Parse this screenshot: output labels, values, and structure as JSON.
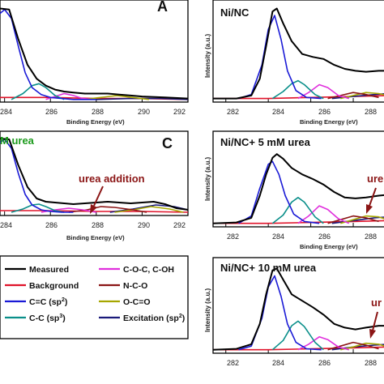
{
  "colors": {
    "measured": "#000000",
    "background": "#e0132a",
    "cc_sp2": "#1a1ad6",
    "cc_sp3": "#0a8f8a",
    "coc": "#e02fdc",
    "nco": "#8b1515",
    "oco": "#a6a600",
    "excitation": "#1a1a7a",
    "green_title": "#1b9a1b",
    "urea_ann": "#8b1515"
  },
  "legend": {
    "items": [
      {
        "key": "measured",
        "label": "Measured",
        "sup": ""
      },
      {
        "key": "coc",
        "label": "C-O-C, C-OH",
        "sup": ""
      },
      {
        "key": "background",
        "label": "Background",
        "sup": ""
      },
      {
        "key": "nco",
        "label": "N-C-O",
        "sup": ""
      },
      {
        "key": "cc_sp2",
        "label": "C=C (sp",
        "sup": "2",
        "close": ")"
      },
      {
        "key": "oco",
        "label": "O-C=O",
        "sup": ""
      },
      {
        "key": "cc_sp3",
        "label": "C-C (sp",
        "sup": "3",
        "close": ")"
      },
      {
        "key": "excitation",
        "label": "Excitation (sp",
        "sup": "2",
        "close": ")"
      }
    ]
  },
  "chart_data": [
    {
      "id": "A",
      "type": "line",
      "letter": "A",
      "title": "",
      "title_color": "",
      "xlabel": "Binding Energy (eV)",
      "ylabel": "",
      "xlim": [
        283.8,
        292
      ],
      "xticks": [
        "284",
        "286",
        "288",
        "290",
        "292"
      ],
      "annotation": "",
      "series": [
        {
          "key": "measured",
          "x": [
            283.8,
            284.2,
            284.6,
            285.0,
            285.4,
            285.8,
            286.2,
            286.6,
            287.0,
            287.5,
            288.0,
            288.5,
            289.0,
            289.5,
            290.0,
            291.0,
            292.0
          ],
          "y": [
            0.93,
            0.92,
            0.62,
            0.36,
            0.22,
            0.15,
            0.11,
            0.09,
            0.08,
            0.07,
            0.07,
            0.07,
            0.06,
            0.05,
            0.04,
            0.03,
            0.02
          ]
        },
        {
          "key": "background",
          "x": [
            283.8,
            286,
            288,
            290,
            292
          ],
          "y": [
            0.03,
            0.03,
            0.02,
            0.02,
            0.01
          ]
        },
        {
          "key": "cc_sp2",
          "x": [
            283.8,
            284.0,
            284.3,
            284.6,
            284.9,
            285.2,
            285.6,
            286.0,
            286.5,
            287.0,
            288.0
          ],
          "y": [
            0.88,
            0.92,
            0.83,
            0.55,
            0.28,
            0.13,
            0.06,
            0.03,
            0.02,
            0.01,
            0.01
          ]
        },
        {
          "key": "cc_sp3",
          "x": [
            284.3,
            284.8,
            285.2,
            285.5,
            285.8,
            286.2,
            286.6
          ],
          "y": [
            0.01,
            0.07,
            0.15,
            0.17,
            0.13,
            0.05,
            0.01
          ]
        },
        {
          "key": "coc",
          "x": [
            285.8,
            286.2,
            286.6,
            287.0,
            287.4,
            287.8
          ],
          "y": [
            0.01,
            0.04,
            0.07,
            0.05,
            0.02,
            0.01
          ]
        },
        {
          "key": "oco",
          "x": [
            287.4,
            288.2,
            288.9,
            289.6,
            290.3
          ],
          "y": [
            0.01,
            0.03,
            0.05,
            0.03,
            0.01
          ]
        },
        {
          "key": "excitation",
          "x": [
            288.0,
            289.5,
            290.8,
            292.0
          ],
          "y": [
            0.01,
            0.02,
            0.02,
            0.01
          ]
        }
      ]
    },
    {
      "id": "B",
      "type": "line",
      "letter": "",
      "title": "Ni/NC",
      "title_color": "#111111",
      "xlabel": "Binding Energy (eV)",
      "ylabel": "Intensity (a.u.)",
      "xlim": [
        281.4,
        289.6
      ],
      "xticks": [
        "282",
        "284",
        "286",
        "288"
      ],
      "annotation": "",
      "series": [
        {
          "key": "measured",
          "x": [
            281.4,
            282.5,
            283.2,
            283.6,
            283.9,
            284.2,
            284.4,
            284.7,
            285.1,
            285.6,
            286.1,
            286.6,
            287.1,
            287.6,
            288.1,
            288.6,
            289.2,
            289.6
          ],
          "y": [
            0.02,
            0.02,
            0.05,
            0.22,
            0.55,
            0.9,
            0.93,
            0.78,
            0.6,
            0.47,
            0.44,
            0.42,
            0.36,
            0.32,
            0.3,
            0.29,
            0.3,
            0.3
          ]
        },
        {
          "key": "background",
          "x": [
            281.4,
            284,
            286,
            288,
            289.6
          ],
          "y": [
            0.02,
            0.02,
            0.03,
            0.04,
            0.05
          ]
        },
        {
          "key": "cc_sp2",
          "x": [
            282.6,
            283.2,
            283.7,
            284.0,
            284.3,
            284.6,
            284.9,
            285.3,
            285.8,
            286.5
          ],
          "y": [
            0.02,
            0.06,
            0.36,
            0.72,
            0.86,
            0.62,
            0.3,
            0.1,
            0.03,
            0.02
          ]
        },
        {
          "key": "cc_sp3",
          "x": [
            284.2,
            284.7,
            285.1,
            285.4,
            285.7,
            286.2,
            286.6
          ],
          "y": [
            0.02,
            0.09,
            0.17,
            0.2,
            0.16,
            0.06,
            0.02
          ]
        },
        {
          "key": "coc",
          "x": [
            285.4,
            285.9,
            286.4,
            286.8,
            287.3,
            287.8
          ],
          "y": [
            0.02,
            0.08,
            0.16,
            0.13,
            0.05,
            0.02
          ]
        },
        {
          "key": "nco",
          "x": [
            286.8,
            287.4,
            288.0,
            288.6,
            289.2
          ],
          "y": [
            0.02,
            0.05,
            0.08,
            0.06,
            0.03
          ]
        },
        {
          "key": "oco",
          "x": [
            287.4,
            288.0,
            288.6,
            289.2,
            289.6
          ],
          "y": [
            0.02,
            0.05,
            0.08,
            0.07,
            0.05
          ]
        },
        {
          "key": "excitation",
          "x": [
            287.0,
            288.0,
            289.0,
            289.6
          ],
          "y": [
            0.02,
            0.04,
            0.06,
            0.07
          ]
        }
      ]
    },
    {
      "id": "C",
      "type": "line",
      "letter": "C",
      "title": "M urea",
      "title_color": "#1b9a1b",
      "xlabel": "Binding Energy (eV)",
      "ylabel": "",
      "xlim": [
        283.8,
        292
      ],
      "xticks": [
        "284",
        "286",
        "288",
        "290",
        "292"
      ],
      "annotation": "urea addition",
      "series": [
        {
          "key": "measured",
          "x": [
            283.8,
            284.2,
            284.6,
            285.0,
            285.4,
            285.8,
            286.2,
            286.6,
            287.0,
            287.5,
            288.0,
            288.5,
            289.0,
            289.5,
            290.0,
            290.5,
            291.0,
            291.5,
            292.0
          ],
          "y": [
            0.93,
            0.92,
            0.6,
            0.33,
            0.19,
            0.15,
            0.14,
            0.13,
            0.12,
            0.13,
            0.14,
            0.15,
            0.14,
            0.13,
            0.14,
            0.15,
            0.12,
            0.07,
            0.05
          ]
        },
        {
          "key": "background",
          "x": [
            283.8,
            286,
            288,
            290,
            292
          ],
          "y": [
            0.04,
            0.04,
            0.03,
            0.03,
            0.02
          ]
        },
        {
          "key": "cc_sp2",
          "x": [
            283.8,
            284.0,
            284.3,
            284.6,
            284.9,
            285.2,
            285.6,
            286.0,
            286.5,
            287.0
          ],
          "y": [
            0.88,
            0.92,
            0.81,
            0.5,
            0.24,
            0.11,
            0.05,
            0.03,
            0.02,
            0.02
          ]
        },
        {
          "key": "cc_sp3",
          "x": [
            284.3,
            284.8,
            285.2,
            285.5,
            285.8,
            286.2,
            286.6
          ],
          "y": [
            0.02,
            0.06,
            0.11,
            0.12,
            0.09,
            0.04,
            0.02
          ]
        },
        {
          "key": "coc",
          "x": [
            285.6,
            286.2,
            286.8,
            287.4,
            288.0
          ],
          "y": [
            0.02,
            0.05,
            0.07,
            0.05,
            0.02
          ]
        },
        {
          "key": "nco",
          "x": [
            286.8,
            287.6,
            288.2,
            288.8,
            289.6,
            290.2
          ],
          "y": [
            0.02,
            0.05,
            0.09,
            0.08,
            0.05,
            0.02
          ]
        },
        {
          "key": "oco",
          "x": [
            288.8,
            289.6,
            290.4,
            291.2,
            291.8
          ],
          "y": [
            0.02,
            0.05,
            0.09,
            0.06,
            0.02
          ]
        },
        {
          "key": "excitation",
          "x": [
            288.6,
            289.6,
            290.6,
            291.4,
            292.0
          ],
          "y": [
            0.02,
            0.06,
            0.11,
            0.09,
            0.05
          ]
        }
      ]
    },
    {
      "id": "D",
      "type": "line",
      "letter": "",
      "title": "Ni/NC+ 5 mM urea",
      "title_color": "#111111",
      "xlabel": "Binding Energy (eV)",
      "ylabel": "Intensity (a.u.)",
      "xlim": [
        281.4,
        289.6
      ],
      "xticks": [
        "282",
        "284",
        "286",
        "288"
      ],
      "annotation": "ure",
      "series": [
        {
          "key": "measured",
          "x": [
            281.4,
            282.5,
            283.2,
            283.6,
            283.9,
            284.2,
            284.4,
            284.7,
            285.1,
            285.6,
            286.1,
            286.6,
            287.1,
            287.6,
            288.1,
            288.6,
            289.2,
            289.6
          ],
          "y": [
            0.02,
            0.03,
            0.08,
            0.32,
            0.55,
            0.73,
            0.77,
            0.72,
            0.62,
            0.55,
            0.5,
            0.44,
            0.36,
            0.3,
            0.29,
            0.3,
            0.32,
            0.33
          ]
        },
        {
          "key": "background",
          "x": [
            281.4,
            284,
            286,
            288,
            289.6
          ],
          "y": [
            0.02,
            0.02,
            0.03,
            0.04,
            0.05
          ]
        },
        {
          "key": "cc_sp2",
          "x": [
            282.6,
            283.2,
            283.6,
            284.0,
            284.2,
            284.5,
            284.8,
            285.2,
            285.7,
            286.4
          ],
          "y": [
            0.02,
            0.1,
            0.4,
            0.66,
            0.69,
            0.55,
            0.32,
            0.12,
            0.04,
            0.02
          ]
        },
        {
          "key": "cc_sp3",
          "x": [
            284.2,
            284.7,
            285.1,
            285.4,
            285.7,
            286.2,
            286.6
          ],
          "y": [
            0.02,
            0.11,
            0.25,
            0.3,
            0.25,
            0.09,
            0.02
          ]
        },
        {
          "key": "coc",
          "x": [
            285.4,
            285.9,
            286.4,
            286.8,
            287.3,
            287.8
          ],
          "y": [
            0.02,
            0.1,
            0.21,
            0.17,
            0.07,
            0.02
          ]
        },
        {
          "key": "nco",
          "x": [
            286.8,
            287.4,
            288.0,
            288.6,
            289.2
          ],
          "y": [
            0.02,
            0.06,
            0.1,
            0.08,
            0.04
          ]
        },
        {
          "key": "oco",
          "x": [
            287.4,
            288.0,
            288.6,
            289.2,
            289.6
          ],
          "y": [
            0.02,
            0.06,
            0.1,
            0.09,
            0.06
          ]
        },
        {
          "key": "excitation",
          "x": [
            287.0,
            288.0,
            289.0,
            289.6
          ],
          "y": [
            0.02,
            0.05,
            0.08,
            0.09
          ]
        }
      ]
    },
    {
      "id": "E",
      "type": "line",
      "letter": "",
      "title": "Ni/NC+ 10 mM urea",
      "title_color": "#111111",
      "xlabel": "",
      "ylabel": "Intensity (a.u.)",
      "xlim": [
        281.4,
        289.6
      ],
      "xticks": [
        "282",
        "284",
        "286",
        "288"
      ],
      "annotation": "ur",
      "series": [
        {
          "key": "measured",
          "x": [
            281.4,
            282.5,
            283.2,
            283.6,
            283.9,
            284.2,
            284.4,
            284.7,
            285.1,
            285.6,
            286.1,
            286.6,
            287.1,
            287.6,
            288.1,
            288.6,
            289.2,
            289.6
          ],
          "y": [
            0.02,
            0.03,
            0.08,
            0.3,
            0.62,
            0.88,
            0.9,
            0.78,
            0.62,
            0.55,
            0.48,
            0.4,
            0.3,
            0.26,
            0.24,
            0.26,
            0.28,
            0.28
          ]
        },
        {
          "key": "background",
          "x": [
            281.4,
            284,
            286,
            288,
            289.6
          ],
          "y": [
            0.02,
            0.02,
            0.03,
            0.04,
            0.05
          ]
        },
        {
          "key": "cc_sp2",
          "x": [
            282.6,
            283.2,
            283.7,
            284.0,
            284.3,
            284.6,
            284.9,
            285.3,
            285.8,
            286.5
          ],
          "y": [
            0.02,
            0.06,
            0.36,
            0.7,
            0.82,
            0.6,
            0.3,
            0.1,
            0.03,
            0.02
          ]
        },
        {
          "key": "cc_sp3",
          "x": [
            284.2,
            284.7,
            285.1,
            285.4,
            285.7,
            286.2,
            286.6
          ],
          "y": [
            0.02,
            0.12,
            0.28,
            0.33,
            0.27,
            0.1,
            0.02
          ]
        },
        {
          "key": "coc",
          "x": [
            285.4,
            285.9,
            286.4,
            286.8,
            287.3,
            287.8
          ],
          "y": [
            0.02,
            0.08,
            0.16,
            0.13,
            0.05,
            0.02
          ]
        },
        {
          "key": "nco",
          "x": [
            286.8,
            287.4,
            288.0,
            288.6,
            289.2
          ],
          "y": [
            0.02,
            0.06,
            0.1,
            0.07,
            0.03
          ]
        },
        {
          "key": "oco",
          "x": [
            287.4,
            288.0,
            288.6,
            289.2,
            289.6
          ],
          "y": [
            0.02,
            0.05,
            0.09,
            0.08,
            0.05
          ]
        },
        {
          "key": "excitation",
          "x": [
            287.0,
            288.0,
            289.0,
            289.6
          ],
          "y": [
            0.02,
            0.05,
            0.07,
            0.08
          ]
        }
      ]
    }
  ]
}
